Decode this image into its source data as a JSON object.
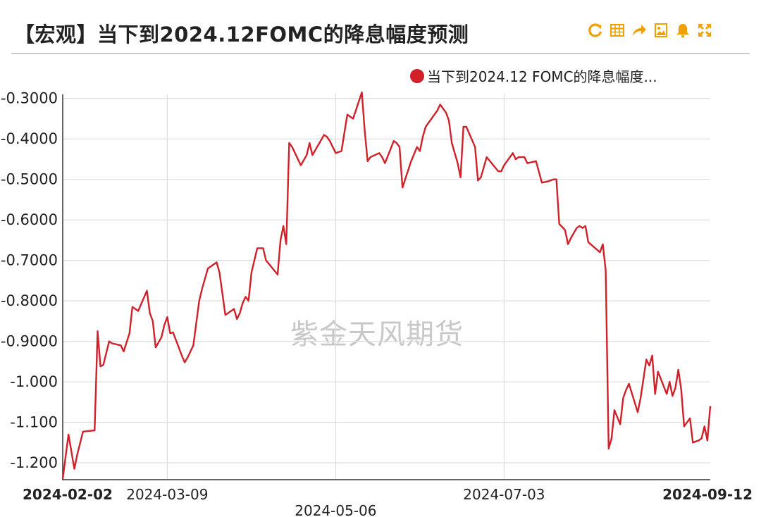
{
  "header": {
    "title": "【宏观】当下到2024.12FOMC的降息幅度预测",
    "toolbar": [
      "refresh-icon",
      "table-icon",
      "share-icon",
      "save-image-icon",
      "alert-bell-icon",
      "fullscreen-icon"
    ],
    "accent": "#f0a000"
  },
  "legend": {
    "label": "当下到2024.12 FOMC的降息幅度...",
    "color": "#d0212a"
  },
  "watermark": "紫金天风期货",
  "chart_data": {
    "type": "line",
    "title": "【宏观】当下到2024.12FOMC的降息幅度预测",
    "xlabel": "",
    "ylabel": "",
    "x_range": [
      "2024-02-02",
      "2024-09-12"
    ],
    "ylim": [
      -1.24,
      -0.29
    ],
    "yticks": [
      -0.3,
      -0.4,
      -0.5,
      -0.6,
      -0.7,
      -0.8,
      -0.9,
      -1.0,
      -1.1,
      -1.2
    ],
    "ytick_labels": [
      "-0.3000",
      "-0.4000",
      "-0.5000",
      "-0.6000",
      "-0.7000",
      "-0.8000",
      "-0.9000",
      "-1.000",
      "-1.100",
      "-1.200"
    ],
    "xticks": [
      {
        "date": "2024-02-02",
        "label": "2024-02-02",
        "bold": true
      },
      {
        "date": "2024-03-09",
        "label": "2024-03-09",
        "bold": false
      },
      {
        "date": "2024-05-06",
        "label": "2024-05-06",
        "bold": false
      },
      {
        "date": "2024-07-03",
        "label": "2024-07-03",
        "bold": false
      },
      {
        "date": "2024-09-12",
        "label": "2024-09-12",
        "bold": true
      }
    ],
    "grid": true,
    "legend_position": "top-right",
    "series": [
      {
        "name": "当下到2024.12 FOMC的降息幅度...",
        "color": "#d0212a",
        "x": [
          "2024-02-02",
          "2024-02-04",
          "2024-02-06",
          "2024-02-07",
          "2024-02-09",
          "2024-02-13",
          "2024-02-14",
          "2024-02-15",
          "2024-02-16",
          "2024-02-18",
          "2024-02-19",
          "2024-02-22",
          "2024-02-23",
          "2024-02-25",
          "2024-02-26",
          "2024-02-28",
          "2024-03-02",
          "2024-03-03",
          "2024-03-04",
          "2024-03-05",
          "2024-03-07",
          "2024-03-08",
          "2024-03-09",
          "2024-03-10",
          "2024-03-11",
          "2024-03-14",
          "2024-03-15",
          "2024-03-16",
          "2024-03-18",
          "2024-03-20",
          "2024-03-21",
          "2024-03-23",
          "2024-03-25",
          "2024-03-26",
          "2024-03-27",
          "2024-03-29",
          "2024-04-01",
          "2024-04-02",
          "2024-04-03",
          "2024-04-04",
          "2024-04-05",
          "2024-04-06",
          "2024-04-07",
          "2024-04-09",
          "2024-04-10",
          "2024-04-11",
          "2024-04-12",
          "2024-04-16",
          "2024-04-17",
          "2024-04-18",
          "2024-04-19",
          "2024-04-20",
          "2024-04-21",
          "2024-04-24",
          "2024-04-26",
          "2024-04-27",
          "2024-04-28",
          "2024-05-02",
          "2024-05-03",
          "2024-05-04",
          "2024-05-06",
          "2024-05-08",
          "2024-05-10",
          "2024-05-11",
          "2024-05-12",
          "2024-05-15",
          "2024-05-16",
          "2024-05-17",
          "2024-05-18",
          "2024-05-21",
          "2024-05-22",
          "2024-05-23",
          "2024-05-26",
          "2024-05-27",
          "2024-05-28",
          "2024-05-29",
          "2024-06-01",
          "2024-06-03",
          "2024-06-04",
          "2024-06-05",
          "2024-06-06",
          "2024-06-09",
          "2024-06-10",
          "2024-06-11",
          "2024-06-13",
          "2024-06-14",
          "2024-06-15",
          "2024-06-17",
          "2024-06-18",
          "2024-06-19",
          "2024-06-20",
          "2024-06-23",
          "2024-06-24",
          "2024-06-25",
          "2024-06-26",
          "2024-06-27",
          "2024-07-01",
          "2024-07-02",
          "2024-07-03",
          "2024-07-06",
          "2024-07-07",
          "2024-07-08",
          "2024-07-10",
          "2024-07-11",
          "2024-07-14",
          "2024-07-16",
          "2024-07-18",
          "2024-07-20",
          "2024-07-21",
          "2024-07-22",
          "2024-07-24",
          "2024-07-25",
          "2024-07-26",
          "2024-07-28",
          "2024-07-29",
          "2024-07-30",
          "2024-07-31",
          "2024-08-01",
          "2024-08-05",
          "2024-08-06",
          "2024-08-07",
          "2024-08-08",
          "2024-08-09",
          "2024-08-10",
          "2024-08-12",
          "2024-08-13",
          "2024-08-14",
          "2024-08-15",
          "2024-08-18",
          "2024-08-19",
          "2024-08-21",
          "2024-08-22",
          "2024-08-23",
          "2024-08-24",
          "2024-08-25",
          "2024-08-28",
          "2024-08-29",
          "2024-08-30",
          "2024-08-31",
          "2024-09-01",
          "2024-09-02",
          "2024-09-03",
          "2024-09-05",
          "2024-09-06",
          "2024-09-08",
          "2024-09-09",
          "2024-09-10",
          "2024-09-11",
          "2024-09-12"
        ],
        "values": [
          -1.24,
          -1.13,
          -1.215,
          -1.18,
          -1.123,
          -1.12,
          -0.875,
          -0.962,
          -0.958,
          -0.9,
          -0.905,
          -0.91,
          -0.925,
          -0.88,
          -0.815,
          -0.825,
          -0.775,
          -0.83,
          -0.85,
          -0.915,
          -0.89,
          -0.86,
          -0.84,
          -0.88,
          -0.878,
          -0.935,
          -0.952,
          -0.94,
          -0.91,
          -0.8,
          -0.77,
          -0.72,
          -0.71,
          -0.705,
          -0.73,
          -0.835,
          -0.82,
          -0.845,
          -0.83,
          -0.805,
          -0.79,
          -0.8,
          -0.73,
          -0.67,
          -0.67,
          -0.67,
          -0.7,
          -0.735,
          -0.65,
          -0.615,
          -0.66,
          -0.41,
          -0.42,
          -0.465,
          -0.44,
          -0.41,
          -0.44,
          -0.39,
          -0.395,
          -0.405,
          -0.435,
          -0.43,
          -0.34,
          -0.345,
          -0.35,
          -0.285,
          -0.38,
          -0.455,
          -0.445,
          -0.435,
          -0.445,
          -0.46,
          -0.405,
          -0.41,
          -0.42,
          -0.52,
          -0.455,
          -0.42,
          -0.43,
          -0.395,
          -0.37,
          -0.34,
          -0.33,
          -0.315,
          -0.335,
          -0.355,
          -0.41,
          -0.46,
          -0.495,
          -0.37,
          -0.37,
          -0.42,
          -0.503,
          -0.495,
          -0.47,
          -0.445,
          -0.48,
          -0.48,
          -0.465,
          -0.435,
          -0.45,
          -0.445,
          -0.445,
          -0.46,
          -0.455,
          -0.508,
          -0.505,
          -0.5,
          -0.5,
          -0.61,
          -0.625,
          -0.66,
          -0.645,
          -0.62,
          -0.615,
          -0.62,
          -0.615,
          -0.655,
          -0.68,
          -0.66,
          -0.725,
          -1.165,
          -1.14,
          -1.07,
          -1.105,
          -1.04,
          -1.02,
          -1.005,
          -1.075,
          -1.04,
          -0.945,
          -0.96,
          -0.935,
          -1.03,
          -0.975,
          -1.03,
          -1.0,
          -1.035,
          -1.015,
          -0.97,
          -1.02,
          -1.11,
          -1.09,
          -1.15,
          -1.145,
          -1.14,
          -1.11,
          -1.145,
          -1.06
        ]
      }
    ]
  }
}
